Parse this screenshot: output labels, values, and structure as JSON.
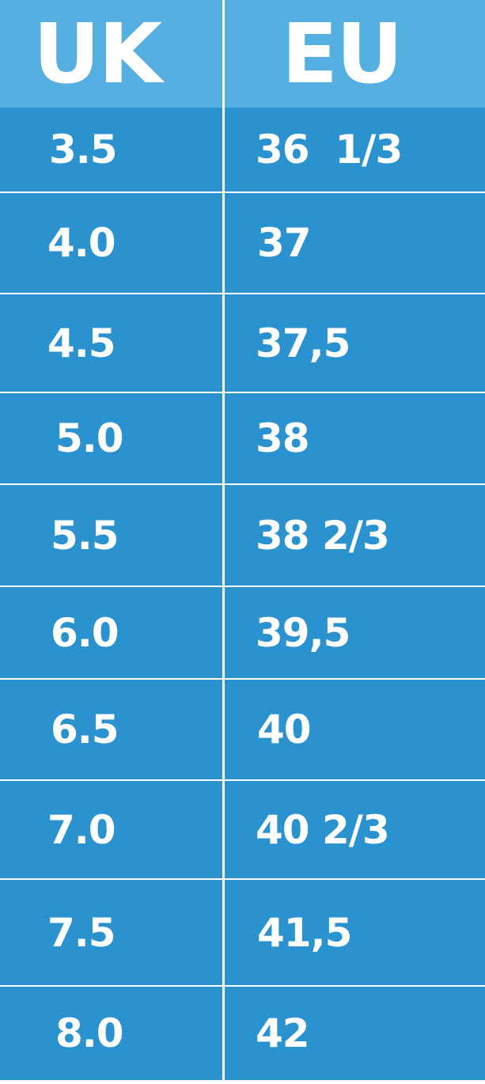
{
  "header": {
    "uk": "UK",
    "eu": "EU"
  },
  "colors": {
    "header_bg": "#55b0e2",
    "row_bg": "#2a92cf",
    "text": "#ffffff",
    "grid": "#ffffff"
  },
  "rows": [
    {
      "uk": "3.5",
      "eu": "36  1/3"
    },
    {
      "uk": "4.0",
      "eu": "37"
    },
    {
      "uk": "4.5",
      "eu": "37,5"
    },
    {
      "uk": "5.0",
      "eu": "38"
    },
    {
      "uk": "5.5",
      "eu": "38 2/3"
    },
    {
      "uk": "6.0",
      "eu": "39,5"
    },
    {
      "uk": "6.5",
      "eu": "40"
    },
    {
      "uk": "7.0",
      "eu": "40 2/3"
    },
    {
      "uk": "7.5",
      "eu": "41,5"
    },
    {
      "uk": "8.0",
      "eu": "42"
    }
  ]
}
